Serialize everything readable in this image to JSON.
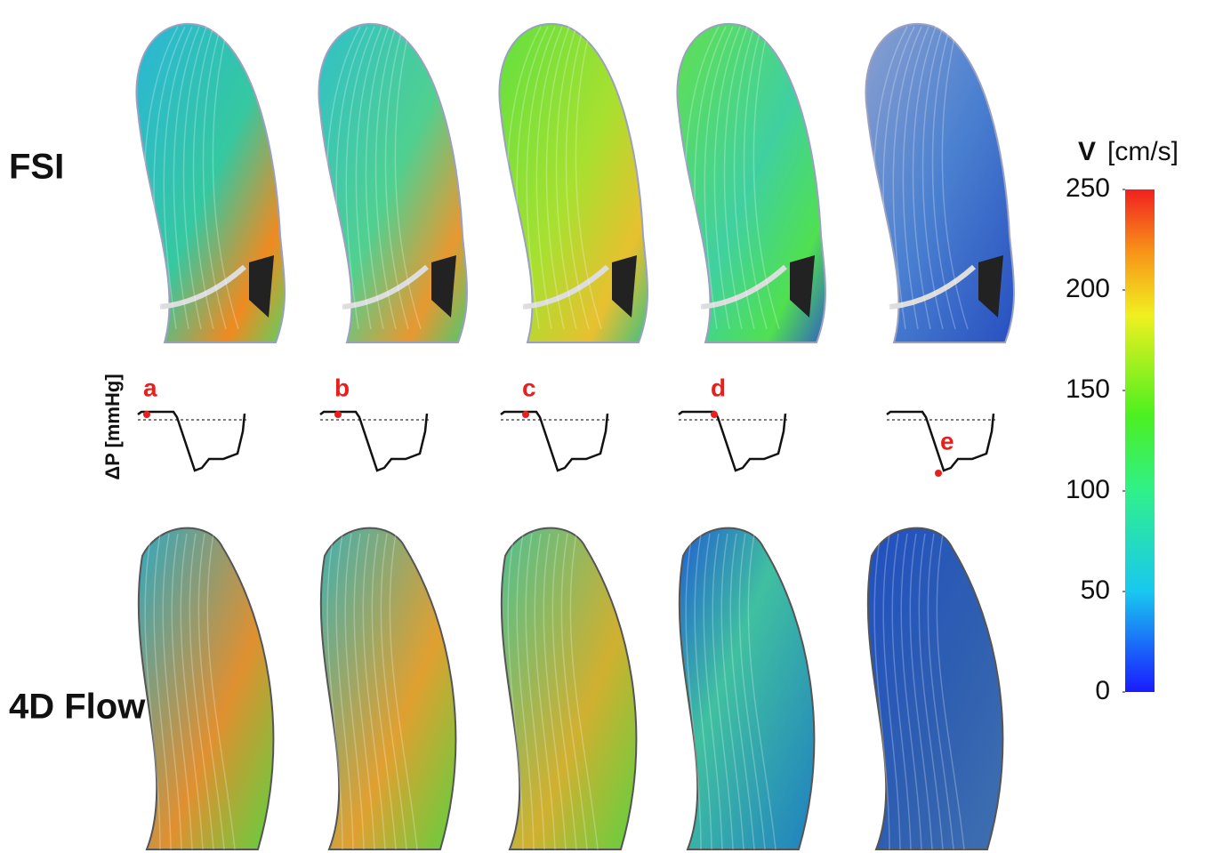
{
  "row_labels": [
    "FSI",
    "4D Flow"
  ],
  "pressure_axis_label": "ΔP [mmHg]",
  "panel_letters": [
    "a",
    "b",
    "c",
    "d",
    "e"
  ],
  "colorbar": {
    "title": "V",
    "unit": "[cm/s]",
    "lim": [
      0,
      250
    ],
    "ticks": [
      250,
      200,
      150,
      100,
      50,
      0
    ]
  }
}
